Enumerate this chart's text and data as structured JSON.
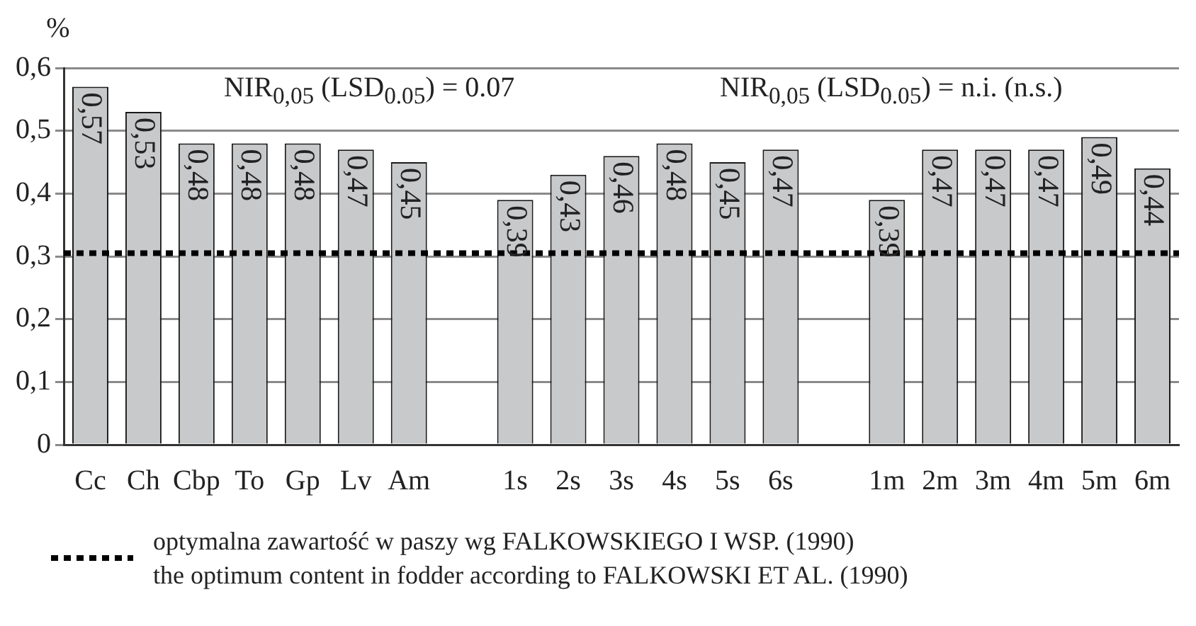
{
  "chart_data": {
    "type": "bar",
    "ylabel": "%",
    "categories": [
      "Cc",
      "Ch",
      "Cbp",
      "To",
      "Gp",
      "Lv",
      "Am",
      null,
      "1s",
      "2s",
      "3s",
      "4s",
      "5s",
      "6s",
      null,
      "1m",
      "2m",
      "3m",
      "4m",
      "5m",
      "6m"
    ],
    "values": [
      0.57,
      0.53,
      0.48,
      0.48,
      0.48,
      0.47,
      0.45,
      null,
      0.39,
      0.43,
      0.46,
      0.48,
      0.45,
      0.47,
      null,
      0.39,
      0.47,
      0.47,
      0.47,
      0.49,
      0.44
    ],
    "value_labels": [
      "0,57",
      "0,53",
      "0,48",
      "0,48",
      "0,48",
      "0,47",
      "0,45",
      null,
      "0,39",
      "0,43",
      "0,46",
      "0,48",
      "0,45",
      "0,47",
      null,
      "0,39",
      "0,47",
      "0,47",
      "0,47",
      "0,49",
      "0,44"
    ],
    "color": "#c8c9cb",
    "ylim": [
      0,
      0.6
    ],
    "yticks": [
      {
        "value": 0,
        "label": "0"
      },
      {
        "value": 0.1,
        "label": "0,1"
      },
      {
        "value": 0.2,
        "label": "0,2"
      },
      {
        "value": 0.3,
        "label": "0,3"
      },
      {
        "value": 0.4,
        "label": "0,4"
      },
      {
        "value": 0.5,
        "label": "0,5"
      },
      {
        "value": 0.6,
        "label": "0,6"
      }
    ],
    "grid": "y",
    "legend": "bottom left",
    "ref_lines": [
      {
        "axis": "y",
        "value": 0.305,
        "color": "#000000",
        "line_style": "dotted",
        "label": "optymalna zawartość w paszy wg FALKOWSKIEGO I WSP. (1990)\nthe optimum content in fodder according to FALKOWSKI ET AL. (1990)"
      }
    ],
    "annotations": [
      "NIR$_{0,05}$ (LSD$_{0.05}$) = 0.07",
      "NIR$_{0,05}$ (LSD$_{0.05}$) = n.i. (n.s.)"
    ]
  }
}
